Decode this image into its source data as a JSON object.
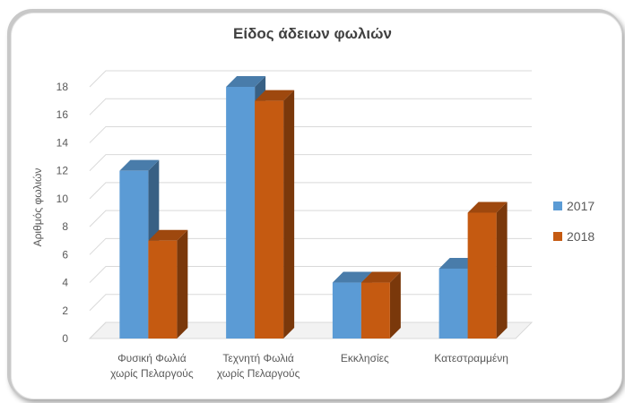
{
  "chart_data": {
    "type": "bar",
    "title": "Είδος άδειων φωλιών",
    "ylabel": "Αριθμός φωλιών",
    "xlabel": "",
    "ylim": [
      0,
      18
    ],
    "yticks": [
      0,
      2,
      4,
      6,
      8,
      10,
      12,
      14,
      16,
      18
    ],
    "categories": [
      [
        "Φυσική Φωλιά",
        "χωρίς Πελαργούς"
      ],
      [
        "Τεχνητή Φωλιά",
        "χωρίς Πελαργούς"
      ],
      [
        "Εκκλησίες"
      ],
      [
        "Κατεστραμμένη"
      ]
    ],
    "series": [
      {
        "name": "2017",
        "values": [
          12,
          18,
          4,
          5
        ],
        "color": "#5b9bd5"
      },
      {
        "name": "2018",
        "values": [
          7,
          17,
          4,
          9
        ],
        "color": "#c55a11"
      }
    ],
    "grid": true,
    "legend": "right"
  }
}
